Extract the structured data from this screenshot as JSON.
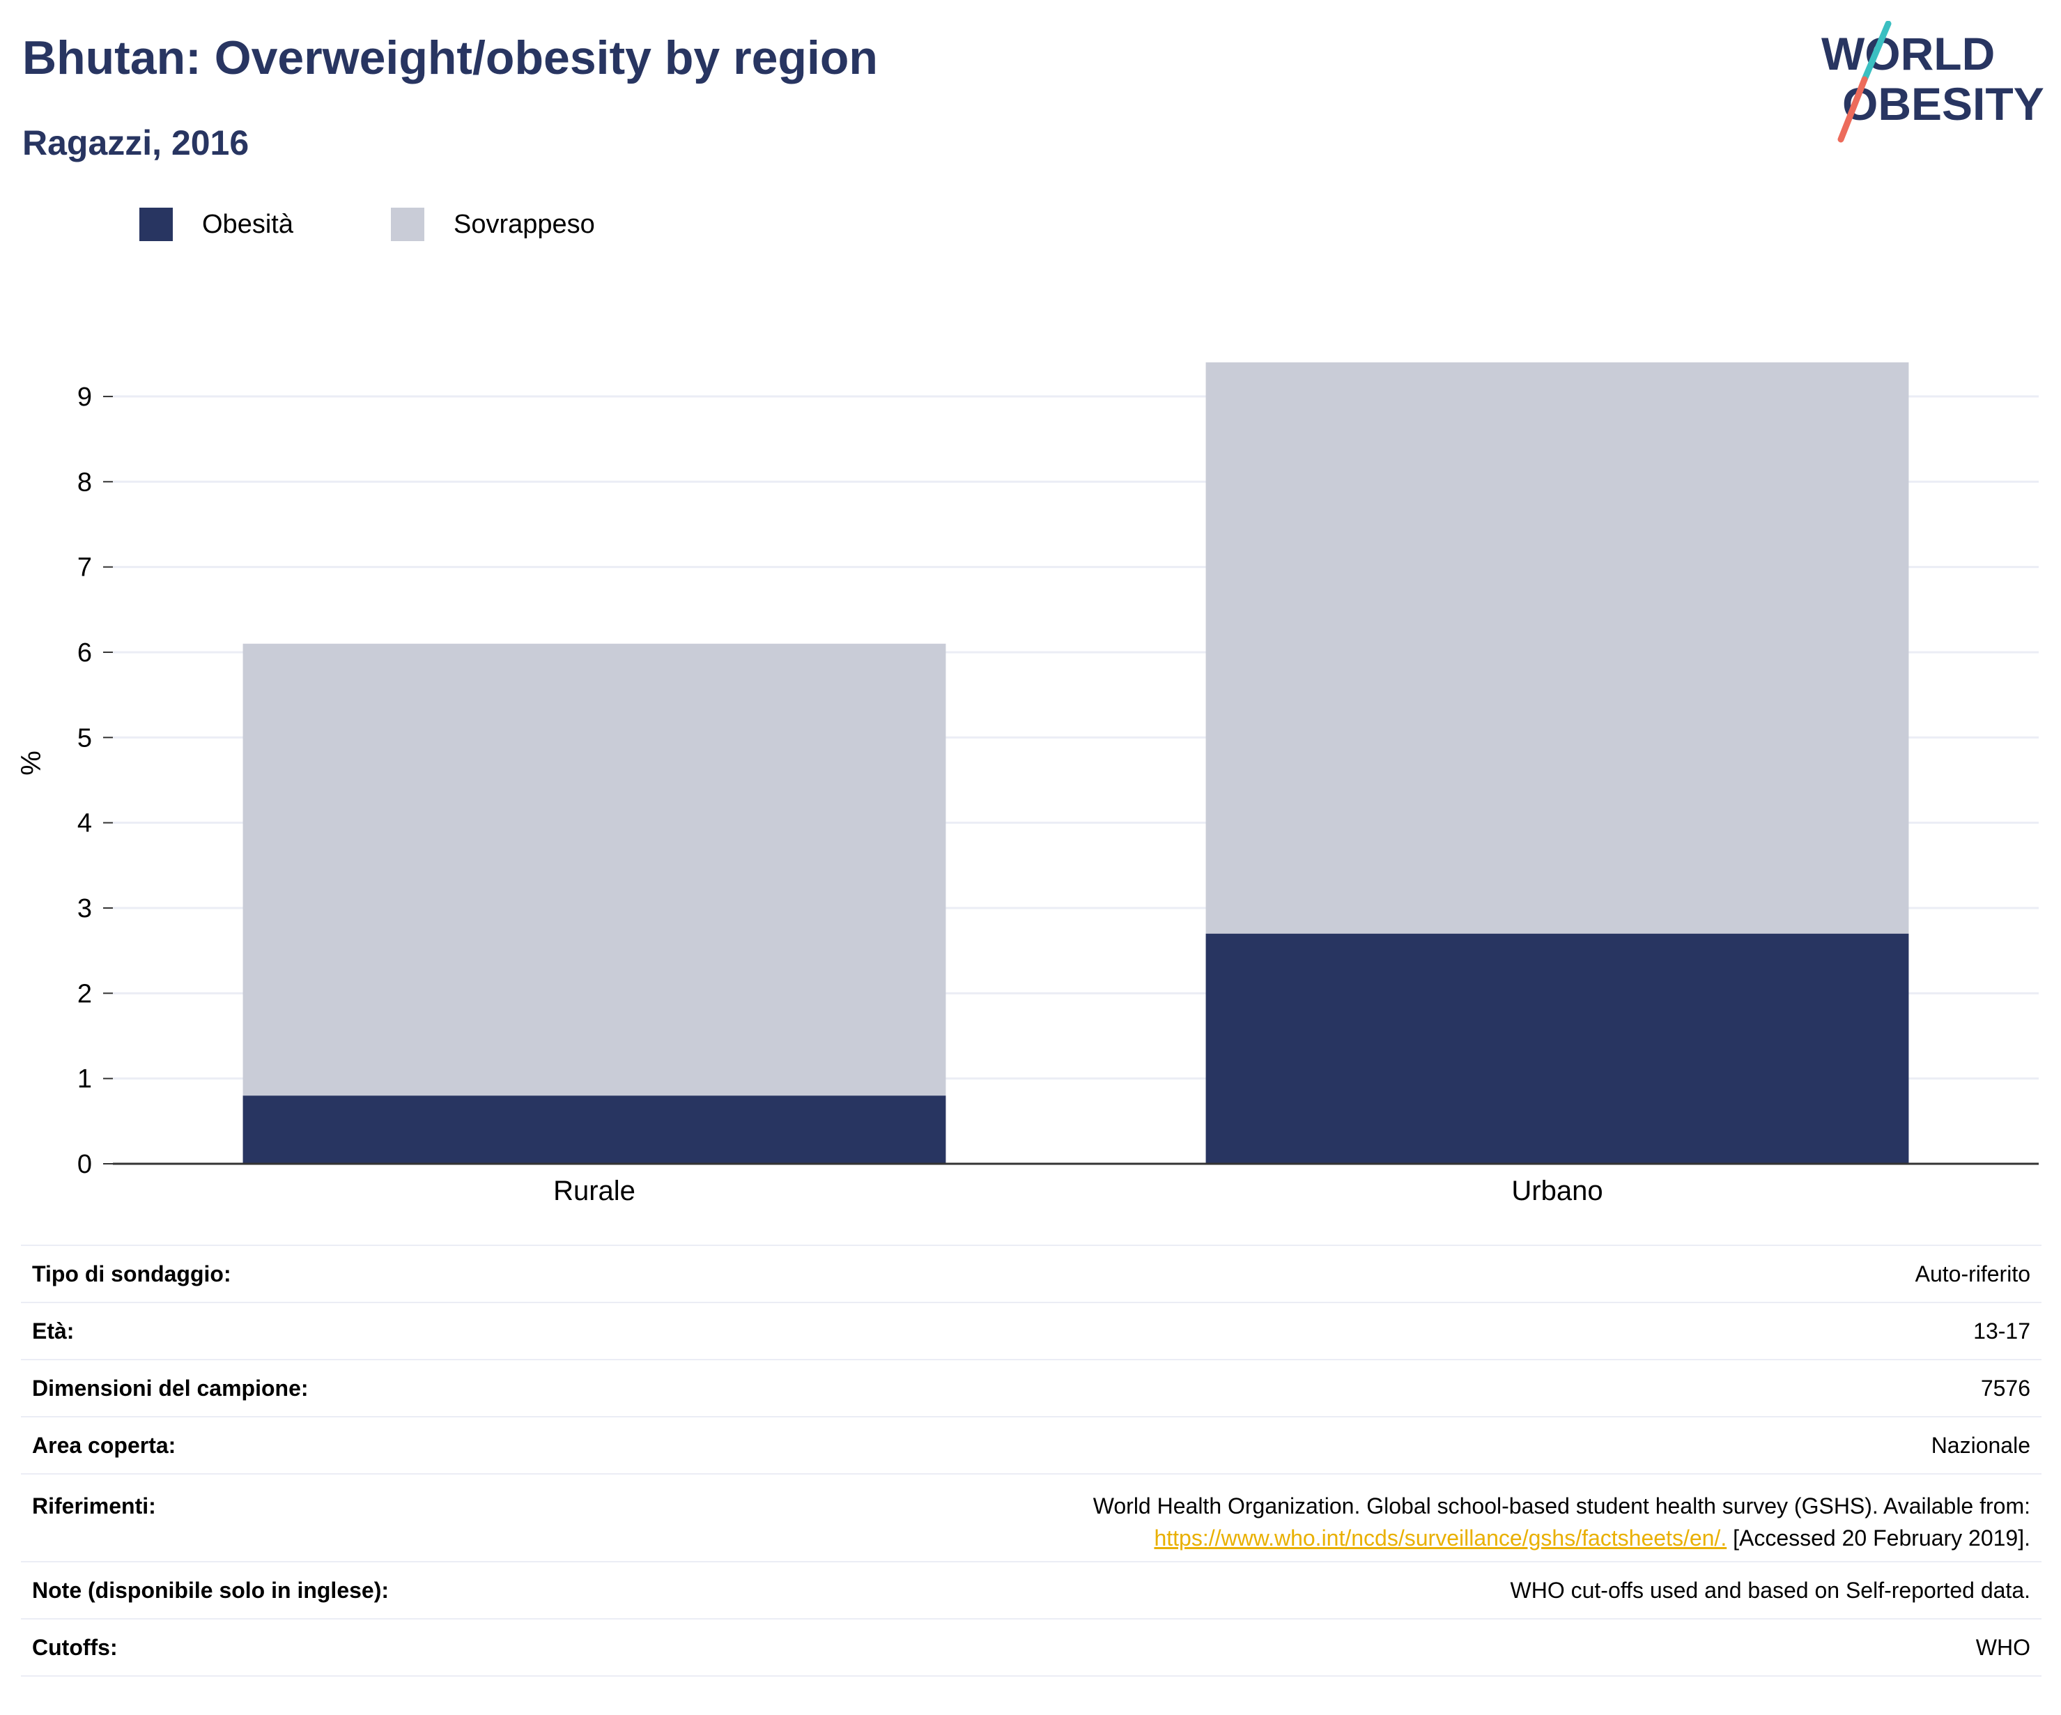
{
  "header": {
    "title": "Bhutan: Overweight/obesity by region",
    "subtitle": "Ragazzi, 2016",
    "logo_line1": "WORLD",
    "logo_line2": "OBESITY"
  },
  "colors": {
    "obesity": "#283561",
    "overweight": "#c9ccd7",
    "title": "#283561",
    "link": "#e9b000",
    "logo_slash_top": "#3bbfc1",
    "logo_slash_bottom": "#ec6b5b"
  },
  "legend": {
    "items": [
      {
        "label": "Obesità",
        "color": "#283561"
      },
      {
        "label": "Sovrappeso",
        "color": "#c9ccd7"
      }
    ],
    "position": "top-left"
  },
  "chart_data": {
    "type": "bar",
    "stacked": true,
    "categories": [
      "Rurale",
      "Urbano"
    ],
    "series": [
      {
        "name": "Obesità",
        "values": [
          0.8,
          2.7
        ],
        "color": "#283561"
      },
      {
        "name": "Sovrappeso",
        "values": [
          5.3,
          6.7
        ],
        "color": "#c9ccd7"
      }
    ],
    "xlabel": "",
    "ylabel": "%",
    "ylim": [
      0,
      9.4
    ],
    "yticks": [
      0,
      1,
      2,
      3,
      4,
      5,
      6,
      7,
      8,
      9
    ],
    "grid": true
  },
  "info": {
    "survey_type": {
      "label": "Tipo di sondaggio:",
      "value": "Auto-riferito"
    },
    "age": {
      "label": "Età:",
      "value": "13-17"
    },
    "sample_size": {
      "label": "Dimensioni del campione:",
      "value": "7576"
    },
    "area": {
      "label": "Area coperta:",
      "value": "Nazionale"
    },
    "references": {
      "label": "Riferimenti:",
      "text": "World Health Organization. Global school-based student health survey (GSHS). Available from:",
      "link": "https://www.who.int/ncds/surveillance/gshs/factsheets/en/.",
      "accessed": "[Accessed 20 February 2019]."
    },
    "notes": {
      "label": "Note (disponibile solo in inglese):",
      "value": "WHO cut-offs used and based on Self-reported data."
    },
    "cutoffs": {
      "label": "Cutoffs:",
      "value": "WHO"
    }
  }
}
